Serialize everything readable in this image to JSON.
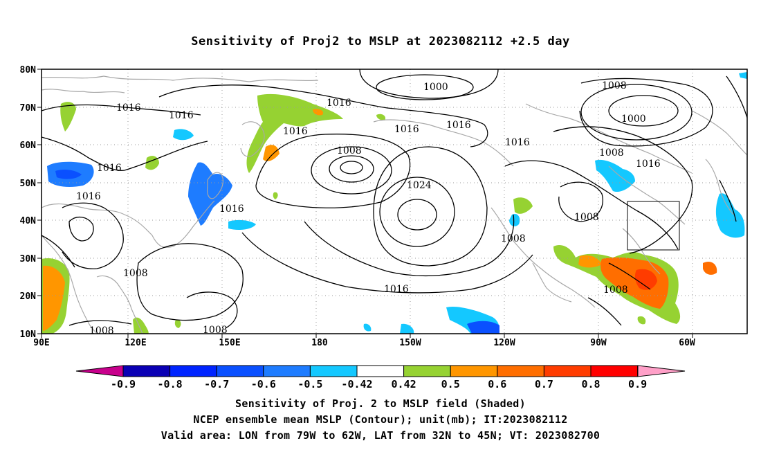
{
  "title": "Sensitivity of Proj2 to MSLP at 2023082112 +2.5 day",
  "map": {
    "lon_ticks": [
      "90E",
      "120E",
      "150E",
      "180",
      "150W",
      "120W",
      "90W",
      "60W"
    ],
    "lat_ticks": [
      "80N",
      "70N",
      "60N",
      "50N",
      "40N",
      "30N",
      "20N",
      "10N"
    ],
    "contour_labels": [
      "1000",
      "1008",
      "1016",
      "1016",
      "1016",
      "1016",
      "1016",
      "1016",
      "1016",
      "1016",
      "1016",
      "1024",
      "1008",
      "1016",
      "1008",
      "1008",
      "1016",
      "1008",
      "1008",
      "1008",
      "1008",
      "1008",
      "1000",
      "1016"
    ],
    "box_label": "valid-area-box"
  },
  "colorbar": {
    "labels": [
      "-0.9",
      "-0.8",
      "-0.7",
      "-0.6",
      "-0.5",
      "-0.42",
      "0.42",
      "0.5",
      "0.6",
      "0.7",
      "0.8",
      "0.9"
    ],
    "colors": [
      "#0a00b4",
      "#0024ff",
      "#0a50ff",
      "#1e7cff",
      "#14c8ff",
      "#ffffff",
      "#96d232",
      "#ff9600",
      "#ff6e00",
      "#ff3c00",
      "#ff0000"
    ],
    "low_triangle": "#c8008c",
    "high_triangle": "#ffa0c8"
  },
  "captions": [
    "Sensitivity of Proj. 2 to MSLP field (Shaded)",
    "NCEP ensemble mean MSLP (Contour); unit(mb); IT:2023082112",
    "Valid area: LON from 79W to 62W, LAT from 32N to 45N; VT: 2023082700"
  ]
}
